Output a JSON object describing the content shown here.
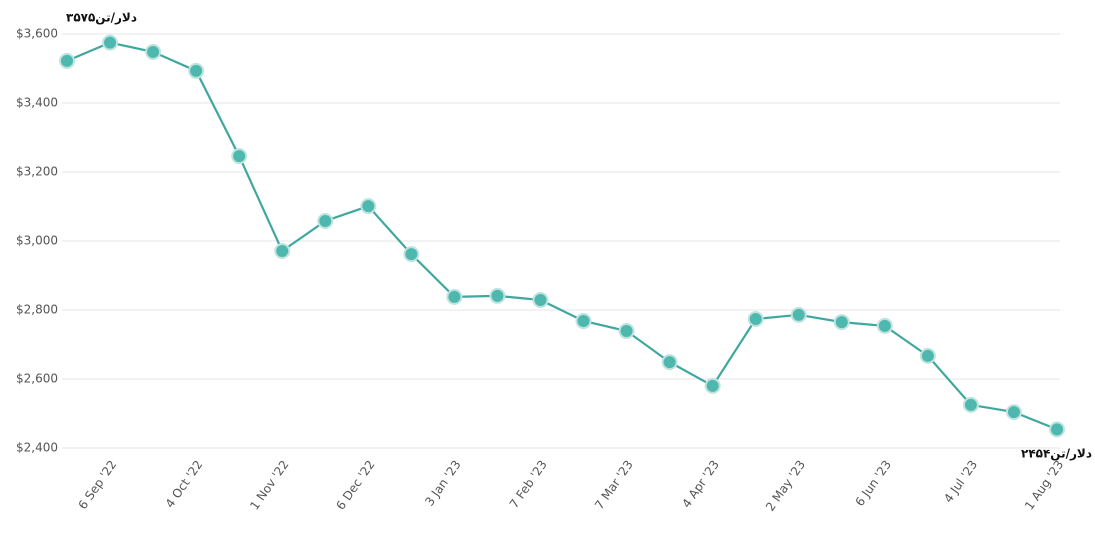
{
  "chart_data": {
    "type": "line",
    "categories": [
      null,
      "6 Sep '22",
      null,
      "4 Oct '22",
      null,
      "1 Nov '22",
      null,
      "6 Dec '22",
      null,
      "3 Jan '23",
      null,
      "7 Feb '23",
      null,
      "7 Mar '23",
      null,
      "4 Apr '23",
      null,
      "2 May '23",
      null,
      "6 Jun '23",
      null,
      "4 Jul '23",
      null,
      "1 Aug '23"
    ],
    "series": [
      {
        "color": "#3ea89f",
        "values": [
          3522,
          3575,
          3548,
          3493,
          3246,
          2971,
          3058,
          3101,
          2962,
          2838,
          2841,
          2829,
          2768,
          2739,
          2649,
          2580,
          2774,
          2786,
          2765,
          2754,
          2667,
          2525,
          2504,
          2454
        ]
      }
    ],
    "ylim": [
      2400,
      3600
    ],
    "yticks": [
      {
        "value": 2400,
        "label": "$2,400"
      },
      {
        "value": 2600,
        "label": "$2,600"
      },
      {
        "value": 2800,
        "label": "$2,800"
      },
      {
        "value": 3000,
        "label": "$3,000"
      },
      {
        "value": 3200,
        "label": "$3,200"
      },
      {
        "value": 3400,
        "label": "$3,400"
      },
      {
        "value": 3600,
        "label": "$3,600"
      }
    ],
    "grid": true,
    "annotations": [
      "۳۵۷۵دلار/تن",
      "۲۴۵۴دلار/تن"
    ]
  }
}
